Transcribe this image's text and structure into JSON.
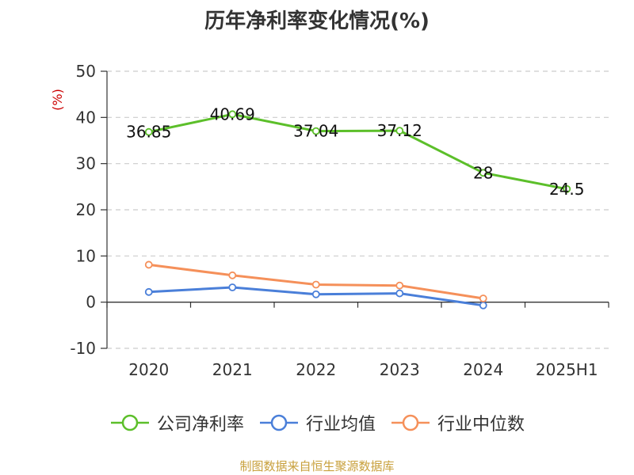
{
  "title": "历年净利率变化情况(%)",
  "source": "制图数据来自恒生聚源数据库",
  "chart_data": {
    "type": "line",
    "title": "历年净利率变化情况(%)",
    "ylabel": "(%)",
    "xlabel": "",
    "categories": [
      "2020",
      "2021",
      "2022",
      "2023",
      "2024",
      "2025H1"
    ],
    "ylim": [
      -10,
      50
    ],
    "yticks": [
      -10,
      0,
      10,
      20,
      30,
      40,
      50
    ],
    "grid": true,
    "legend_position": "bottom",
    "series": [
      {
        "name": "公司净利率",
        "color": "#5cbf2a",
        "values": [
          36.85,
          40.69,
          37.04,
          37.12,
          28,
          24.5
        ],
        "labels": [
          "36.85",
          "40.69",
          "37.04",
          "37.12",
          "28",
          "24.5"
        ]
      },
      {
        "name": "行业均值",
        "color": "#4a7fd9",
        "values": [
          2.2,
          3.2,
          1.7,
          1.9,
          -0.7,
          null
        ]
      },
      {
        "name": "行业中位数",
        "color": "#f5905a",
        "values": [
          8.1,
          5.8,
          3.8,
          3.6,
          0.8,
          null
        ]
      }
    ]
  }
}
